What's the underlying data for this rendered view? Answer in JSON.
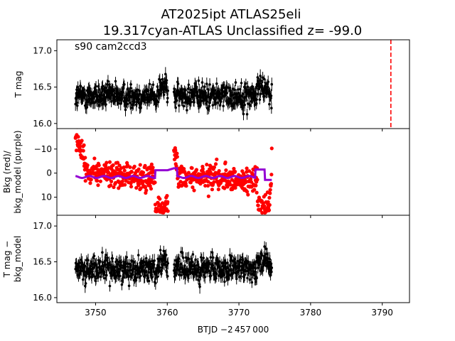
{
  "chart_data": {
    "type": "scatter",
    "title_line1": "AT2025ipt  ATLAS25eli",
    "title_line2": "19.317cyan-ATLAS Unclassified z= -99.0",
    "annotation": "s90 cam2ccd3",
    "xlabel": "BTJD −2 457 000",
    "xlim": [
      3744.6,
      3793.8
    ],
    "xticks": [
      3750,
      3760,
      3770,
      3780,
      3790
    ],
    "xtick_labels": [
      "3750",
      "3760",
      "3770",
      "3780",
      "3790"
    ],
    "data_span": [
      3747.2,
      3774.6
    ],
    "gap": [
      3760.1,
      3760.9
    ],
    "marker_line_x": 3791.2,
    "panels": [
      {
        "id": "top",
        "ylabel": [
          "T mag"
        ],
        "ylim": [
          17.15,
          15.93
        ],
        "yticks": [
          16.0,
          16.5,
          17.0
        ],
        "ytick_labels": [
          "16.0",
          "16.5",
          "17.0"
        ],
        "series": [
          {
            "color": "#000000",
            "center": 16.38,
            "spread": 0.2
          }
        ]
      },
      {
        "id": "middle",
        "ylabel": [
          "Bkg (red)/",
          "bkg_model (purple)"
        ],
        "ylim": [
          -18.5,
          17.5
        ],
        "yticks": [
          10,
          0,
          -10
        ],
        "ytick_labels": [
          "10",
          "0",
          "−10"
        ],
        "series": [
          {
            "color": "#ff0000",
            "kind": "background"
          },
          {
            "color": "#9400d3",
            "kind": "model"
          }
        ]
      },
      {
        "id": "bottom",
        "ylabel": [
          "T mag −",
          "bkg_model"
        ],
        "ylim": [
          17.15,
          15.93
        ],
        "yticks": [
          16.0,
          16.5,
          17.0
        ],
        "ytick_labels": [
          "16.0",
          "16.5",
          "17.0"
        ],
        "series": [
          {
            "color": "#000000",
            "center": 16.4,
            "spread": 0.2
          }
        ]
      }
    ],
    "colors": {
      "lightcurve": "#000000",
      "background": "#ff0000",
      "model": "#9400d3",
      "marker_line": "#ff0000"
    }
  }
}
